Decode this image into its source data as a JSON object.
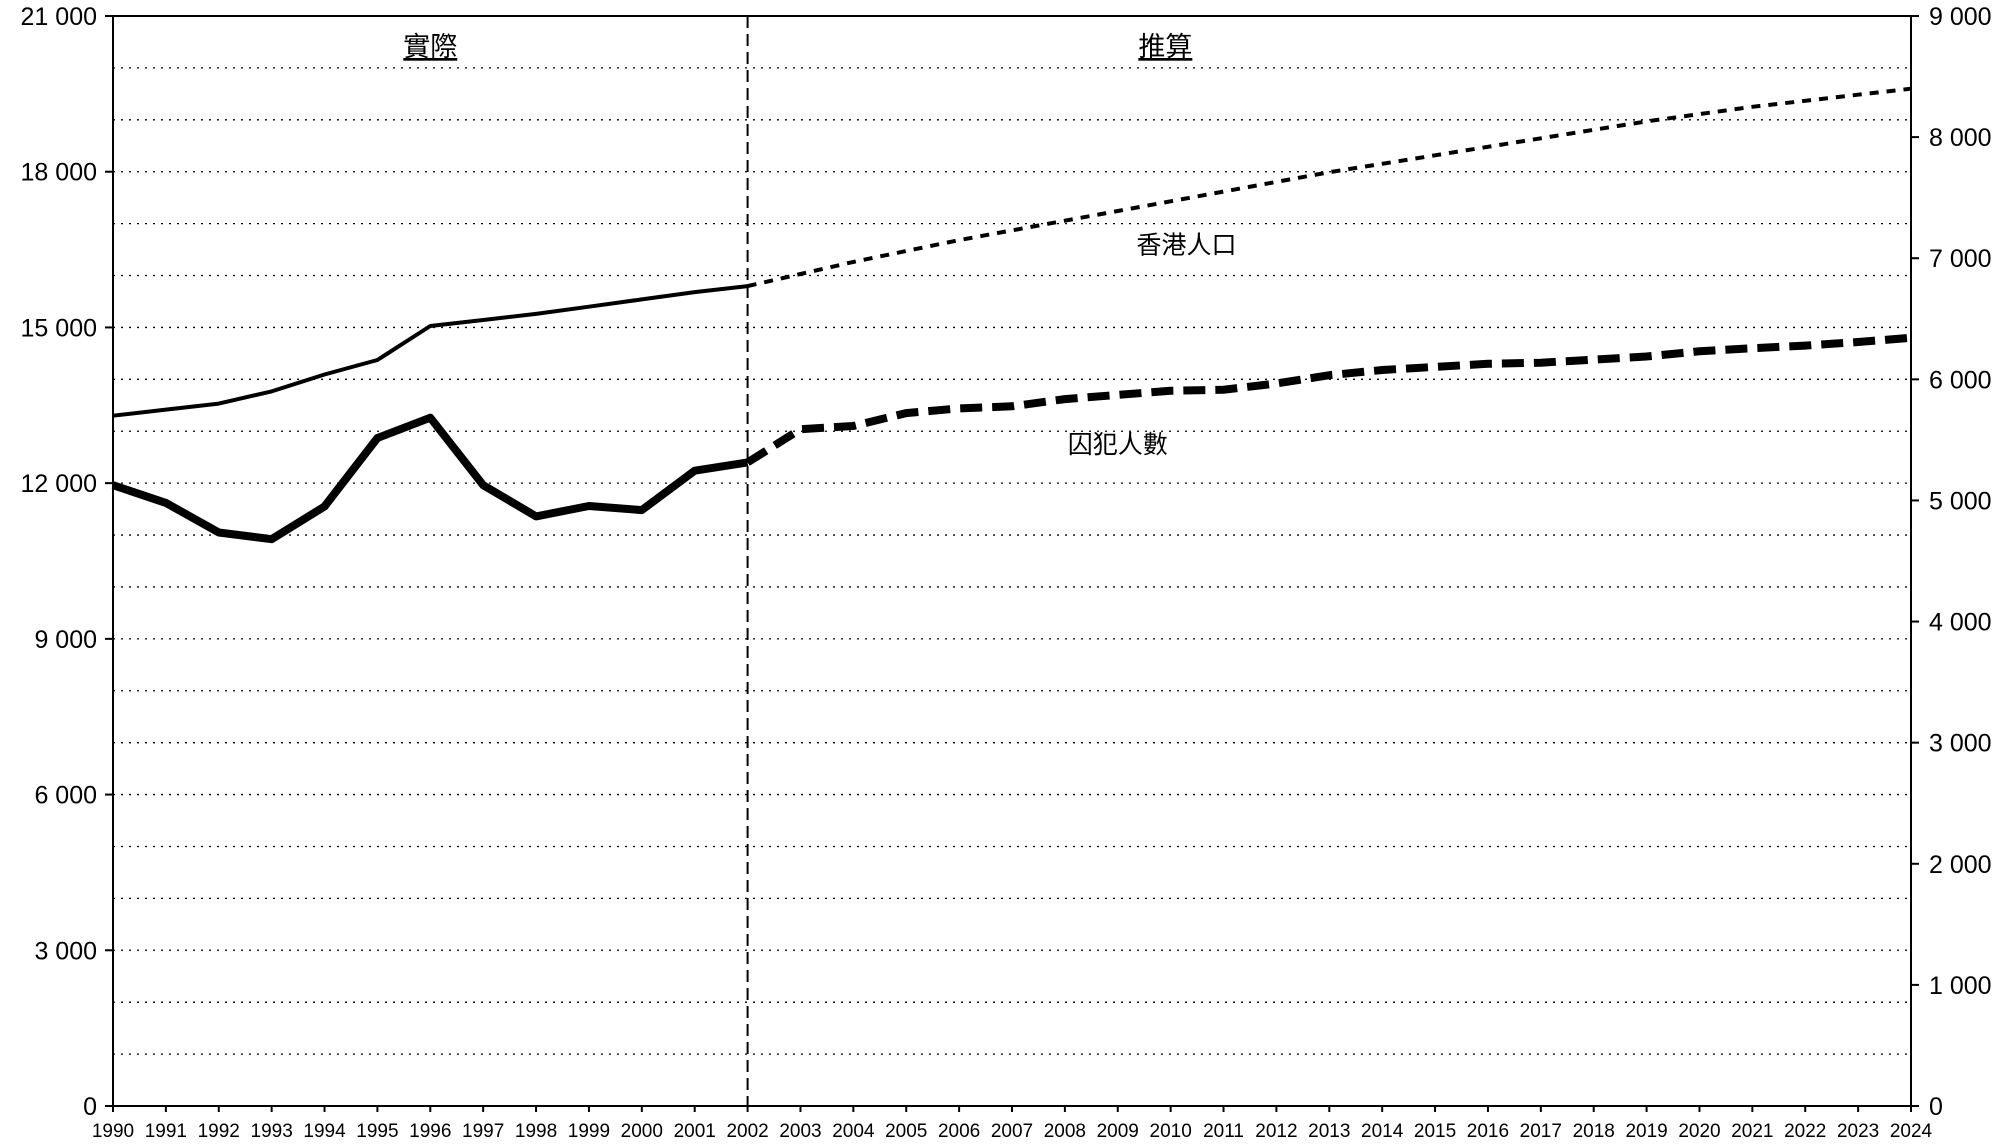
{
  "chart_data": {
    "type": "line",
    "x": [
      1990,
      1991,
      1992,
      1993,
      1994,
      1995,
      1996,
      1997,
      1998,
      1999,
      2000,
      2001,
      2002,
      2003,
      2004,
      2005,
      2006,
      2007,
      2008,
      2009,
      2010,
      2011,
      2012,
      2013,
      2014,
      2015,
      2016,
      2017,
      2018,
      2019,
      2020,
      2021,
      2022,
      2023,
      2024
    ],
    "xlim": [
      1990,
      2024
    ],
    "x_tick_labels": [
      "1990",
      "1991",
      "1992",
      "1993",
      "1994",
      "1995",
      "1996",
      "1997",
      "1998",
      "1999",
      "2000",
      "2001",
      "2002",
      "2003",
      "2004",
      "2005",
      "2006",
      "2007",
      "2008",
      "2009",
      "2010",
      "2011",
      "2012",
      "2013",
      "2014",
      "2015",
      "2016",
      "2017",
      "2018",
      "2019",
      "2020",
      "2021",
      "2022",
      "2023",
      "2024"
    ],
    "y_left": {
      "lim": [
        0,
        21000
      ],
      "ticks": [
        0,
        3000,
        6000,
        9000,
        12000,
        15000,
        18000,
        21000
      ],
      "tick_labels": [
        "0",
        "3 000",
        "6 000",
        "9 000",
        "12 000",
        "15 000",
        "18 000",
        "21 000"
      ],
      "minor_step": 1000
    },
    "y_right": {
      "lim": [
        0,
        9000
      ],
      "ticks": [
        0,
        1000,
        2000,
        3000,
        4000,
        5000,
        6000,
        7000,
        8000,
        9000
      ],
      "tick_labels": [
        "0",
        "1 000",
        "2 000",
        "3 000",
        "4 000",
        "5 000",
        "6 000",
        "7 000",
        "8 000",
        "9 000"
      ]
    },
    "grid": "horizontal-dotted",
    "divider_year": 2002,
    "sections": [
      {
        "label": "實際",
        "x_center": 1996
      },
      {
        "label": "推算",
        "x_center": 2009.9
      }
    ],
    "series": [
      {
        "name": "香港人口",
        "axis": "right",
        "style": "thin",
        "label_at": [
          2010.3,
          7040
        ],
        "actual": {
          "x": [
            1990,
            1991,
            1992,
            1993,
            1994,
            1995,
            1996,
            1997,
            1998,
            1999,
            2000,
            2001,
            2002
          ],
          "y": [
            5700,
            5750,
            5800,
            5900,
            6040,
            6160,
            6440,
            6490,
            6540,
            6600,
            6660,
            6720,
            6770
          ]
        },
        "projected": {
          "x": [
            2002,
            2003,
            2004,
            2005,
            2006,
            2007,
            2008,
            2009,
            2010,
            2011,
            2012,
            2013,
            2014,
            2015,
            2016,
            2017,
            2018,
            2019,
            2020,
            2021,
            2022,
            2023,
            2024
          ],
          "y": [
            6770,
            6870,
            6970,
            7060,
            7150,
            7230,
            7310,
            7390,
            7470,
            7550,
            7630,
            7710,
            7780,
            7850,
            7920,
            7990,
            8060,
            8130,
            8190,
            8250,
            8300,
            8350,
            8400
          ]
        }
      },
      {
        "name": "囚犯人數",
        "axis": "left",
        "style": "thick",
        "label_at": [
          2009,
          12580
        ],
        "actual": {
          "x": [
            1990,
            1991,
            1992,
            1993,
            1994,
            1995,
            1996,
            1997,
            1998,
            1999,
            2000,
            2001,
            2002
          ],
          "y": [
            11960,
            11620,
            11050,
            10920,
            11550,
            12870,
            13260,
            11960,
            11360,
            11560,
            11480,
            12240,
            12400
          ]
        },
        "projected": {
          "x": [
            2002,
            2003,
            2004,
            2005,
            2006,
            2007,
            2008,
            2009,
            2010,
            2011,
            2012,
            2013,
            2014,
            2015,
            2016,
            2017,
            2018,
            2019,
            2020,
            2021,
            2022,
            2023,
            2024
          ],
          "y": [
            12400,
            13040,
            13100,
            13350,
            13440,
            13480,
            13620,
            13700,
            13780,
            13800,
            13920,
            14080,
            14180,
            14240,
            14300,
            14320,
            14380,
            14440,
            14540,
            14600,
            14650,
            14720,
            14800
          ]
        }
      }
    ]
  }
}
